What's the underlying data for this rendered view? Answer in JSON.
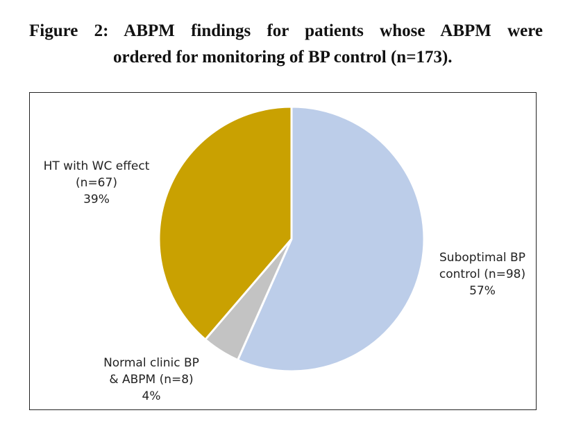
{
  "figure": {
    "caption_line1": "Figure 2: ABPM findings for patients whose ABPM were",
    "caption_line2": "ordered for monitoring of BP control (n=173)."
  },
  "chart_data": {
    "type": "pie",
    "title": "Figure 2: ABPM findings for patients whose ABPM were ordered for monitoring of BP control (n=173).",
    "slices": [
      {
        "key": "suboptimal",
        "label_lines": [
          "Suboptimal BP",
          "control (n=98)",
          "57%"
        ],
        "count": 98,
        "percent": 57,
        "color": "#bccde9"
      },
      {
        "key": "normal",
        "label_lines": [
          "Normal clinic BP",
          "& ABPM (n=8)",
          "4%"
        ],
        "count": 8,
        "percent": 4,
        "color": "#c3c3c3"
      },
      {
        "key": "wc",
        "label_lines": [
          "HT with WC effect",
          "(n=67)",
          "39%"
        ],
        "count": 67,
        "percent": 39,
        "color": "#c9a101"
      }
    ],
    "start_angle": "12 o'clock",
    "direction": "clockwise",
    "legend": "none"
  }
}
